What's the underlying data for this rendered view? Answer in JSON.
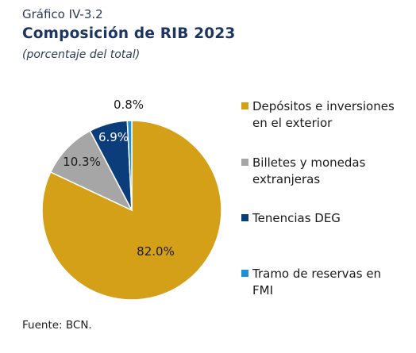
{
  "figure": {
    "label": "Gráfico IV-3.2",
    "title": "Composición de RIB 2023",
    "subtitle": "(porcentaje del total)",
    "source": "Fuente: BCN."
  },
  "chart_data": {
    "type": "pie",
    "title": "Composición de RIB 2023",
    "unit": "porcentaje del total",
    "slices": [
      {
        "name": "Depósitos e inversiones en el exterior",
        "value": 82.0,
        "label": "82.0%",
        "color": "#d4a017"
      },
      {
        "name": "Billetes y monedas extranjeras",
        "value": 10.3,
        "label": "10.3%",
        "color": "#a6a6a6"
      },
      {
        "name": "Tenencias DEG",
        "value": 6.9,
        "label": "6.9%",
        "color": "#0b3d7a"
      },
      {
        "name": "Tramo de reservas en FMI",
        "value": 0.8,
        "label": "0.8%",
        "color": "#1e90d6"
      }
    ],
    "legend_placement": "right"
  },
  "legend": {
    "items": [
      {
        "lines": [
          "Depósitos e inversiones",
          "en el exterior"
        ]
      },
      {
        "lines": [
          "Billetes y monedas",
          "extranjeras"
        ]
      },
      {
        "lines": [
          "Tenencias DEG"
        ]
      },
      {
        "lines": [
          "Tramo de reservas en",
          "FMI"
        ]
      }
    ]
  }
}
